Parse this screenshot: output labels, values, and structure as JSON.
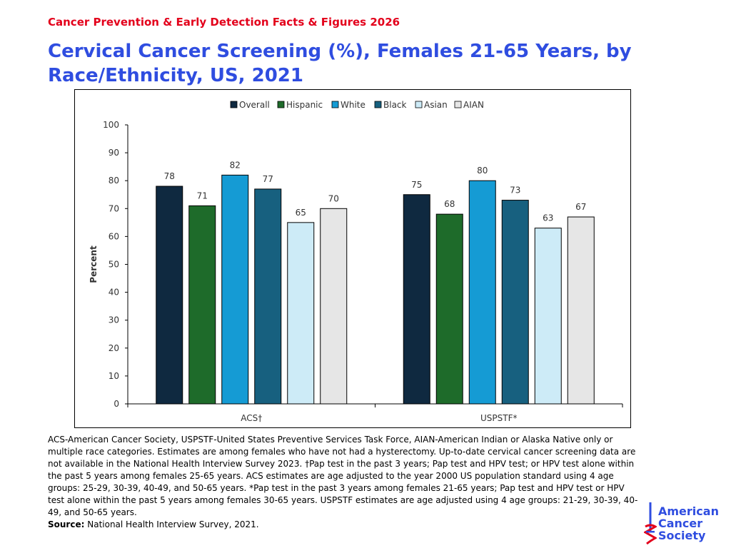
{
  "header": {
    "supertitle": "Cancer Prevention & Early Detection Facts & Figures 2026",
    "title": "Cervical Cancer Screening (%), Females 21-65 Years, by Race/Ethnicity, US, 2021"
  },
  "chart_data": {
    "type": "bar",
    "categories": [
      "ACS†",
      "USPSTF*"
    ],
    "series": [
      {
        "name": "Overall",
        "color": "#0f2940",
        "values": [
          78,
          75
        ]
      },
      {
        "name": "Hispanic",
        "color": "#1e6b2a",
        "values": [
          71,
          68
        ]
      },
      {
        "name": "White",
        "color": "#159bd4",
        "values": [
          82,
          80
        ]
      },
      {
        "name": "Black",
        "color": "#17607f",
        "values": [
          77,
          73
        ]
      },
      {
        "name": "Asian",
        "color": "#cdebf7",
        "values": [
          65,
          63
        ]
      },
      {
        "name": "AIAN",
        "color": "#e6e6e6",
        "values": [
          70,
          67
        ]
      }
    ],
    "ylabel": "Percent",
    "ylim": [
      0,
      100
    ],
    "yticks": [
      0,
      10,
      20,
      30,
      40,
      50,
      60,
      70,
      80,
      90,
      100
    ],
    "legend_position": "top",
    "grid": false,
    "data_labels": true
  },
  "footnote": {
    "text": "ACS-American Cancer Society, USPSTF-United States Preventive Services Task Force, AIAN-American Indian or Alaska Native only or multiple race categories. Estimates are among females who have not had a hysterectomy. Up-to-date cervical cancer screening data are not available in the National Health Interview Survey 2023. †Pap test in the past 3 years; Pap test and HPV test; or HPV test alone within the past 5 years among females 25-65 years. ACS estimates are age adjusted to the year 2000 US population standard using 4 age groups: 25-29, 30-39, 40-49, and 50-65 years. *Pap test in the past 3 years among females 21-65 years; Pap test and HPV test or HPV test alone within the past 5 years among females 30-65 years. USPSTF estimates are age adjusted using 4 age groups: 21-29, 30-39, 40-49, and 50-65 years.",
    "source_label": "Source:",
    "source_text": "National Health Interview Survey, 2021."
  },
  "logo": {
    "line1": "American",
    "line2": "Cancer",
    "line3": "Society"
  }
}
